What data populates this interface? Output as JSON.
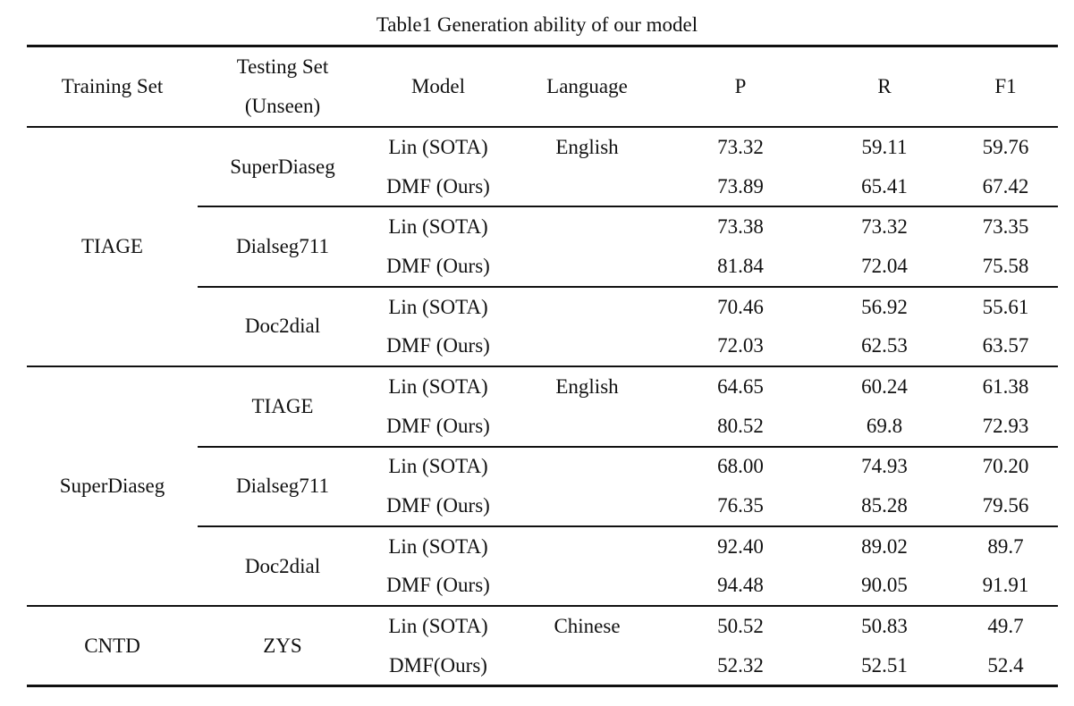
{
  "caption": "Table1 Generation ability of our model",
  "headers": {
    "training_set": "Training Set",
    "testing_set_line1": "Testing Set",
    "testing_set_line2": "(Unseen)",
    "model": "Model",
    "language": "Language",
    "p": "P",
    "r": "R",
    "f1": "F1"
  },
  "groups": [
    {
      "training": "TIAGE",
      "tests": [
        {
          "name": "SuperDiaseg",
          "language": "English",
          "rows": [
            {
              "model": "Lin (SOTA)",
              "p": "73.32",
              "r": "59.11",
              "f1": "59.76"
            },
            {
              "model": "DMF (Ours)",
              "p": "73.89",
              "r": "65.41",
              "f1": "67.42"
            }
          ]
        },
        {
          "name": "Dialseg711",
          "language": "",
          "rows": [
            {
              "model": "Lin (SOTA)",
              "p": "73.38",
              "r": "73.32",
              "f1": "73.35"
            },
            {
              "model": "DMF (Ours)",
              "p": "81.84",
              "r": "72.04",
              "f1": "75.58"
            }
          ]
        },
        {
          "name": "Doc2dial",
          "language": "",
          "rows": [
            {
              "model": "Lin (SOTA)",
              "p": "70.46",
              "r": "56.92",
              "f1": "55.61"
            },
            {
              "model": "DMF (Ours)",
              "p": "72.03",
              "r": "62.53",
              "f1": "63.57"
            }
          ]
        }
      ]
    },
    {
      "training": "SuperDiaseg",
      "tests": [
        {
          "name": "TIAGE",
          "language": "English",
          "rows": [
            {
              "model": "Lin (SOTA)",
              "p": "64.65",
              "r": "60.24",
              "f1": "61.38"
            },
            {
              "model": "DMF (Ours)",
              "p": "80.52",
              "r": "69.8",
              "f1": "72.93"
            }
          ]
        },
        {
          "name": "Dialseg711",
          "language": "",
          "rows": [
            {
              "model": "Lin (SOTA)",
              "p": "68.00",
              "r": "74.93",
              "f1": "70.20"
            },
            {
              "model": "DMF (Ours)",
              "p": "76.35",
              "r": "85.28",
              "f1": "79.56"
            }
          ]
        },
        {
          "name": "Doc2dial",
          "language": "",
          "rows": [
            {
              "model": "Lin (SOTA)",
              "p": "92.40",
              "r": "89.02",
              "f1": "89.7"
            },
            {
              "model": "DMF (Ours)",
              "p": "94.48",
              "r": "90.05",
              "f1": "91.91"
            }
          ]
        }
      ]
    },
    {
      "training": "CNTD",
      "tests": [
        {
          "name": "ZYS",
          "language": "Chinese",
          "rows": [
            {
              "model": "Lin (SOTA)",
              "p": "50.52",
              "r": "50.83",
              "f1": "49.7"
            },
            {
              "model": "DMF(Ours)",
              "p": "52.32",
              "r": "52.51",
              "f1": "52.4"
            }
          ]
        }
      ]
    }
  ]
}
